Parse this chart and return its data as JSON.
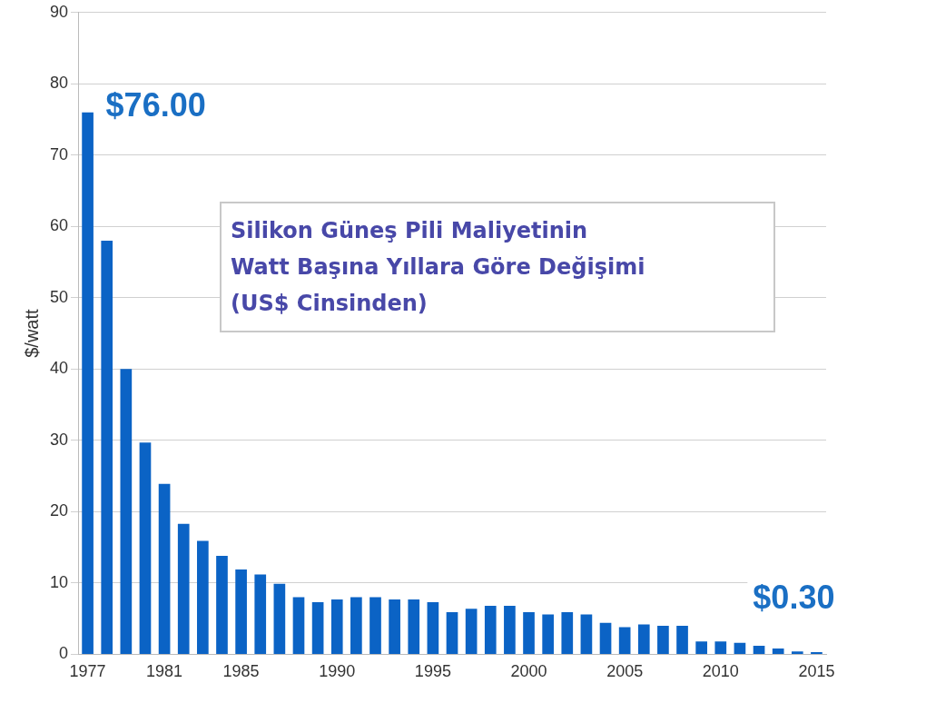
{
  "chart_data": {
    "type": "bar",
    "title": "Silikon Güneş Pili Maliyetinin\nWatt Başına Yıllara Göre Değişimi\n(US$ Cinsinden)",
    "ylabel": "$/watt",
    "categories": [
      "1977",
      null,
      null,
      null,
      "1981",
      null,
      null,
      null,
      "1985",
      null,
      null,
      null,
      null,
      "1990",
      null,
      null,
      null,
      null,
      "1995",
      null,
      null,
      null,
      null,
      "2000",
      null,
      null,
      null,
      null,
      "2005",
      null,
      null,
      null,
      null,
      "2010",
      null,
      null,
      null,
      null,
      "2015"
    ],
    "values": [
      76,
      58,
      40,
      29.7,
      23.9,
      18.3,
      15.9,
      13.8,
      11.9,
      11.2,
      9.9,
      8.0,
      7.3,
      7.7,
      8.0,
      8.0,
      7.7,
      7.7,
      7.3,
      5.9,
      6.4,
      6.8,
      6.8,
      5.9,
      5.6,
      5.9,
      5.6,
      4.4,
      3.8,
      4.2,
      4.0,
      4.0,
      1.8,
      1.8,
      1.6,
      1.2,
      0.8,
      0.4,
      0.3
    ],
    "color": "#0b63c5",
    "ylim": [
      0,
      90
    ],
    "yticks": [
      0,
      10,
      20,
      30,
      40,
      50,
      60,
      70,
      80,
      90
    ],
    "grid": "y",
    "legend": false,
    "annotations": [
      {
        "text": "$76.00",
        "x": "1977",
        "y": 76
      },
      {
        "text": "$0.30",
        "x": "2015",
        "y": 0.3
      }
    ]
  }
}
